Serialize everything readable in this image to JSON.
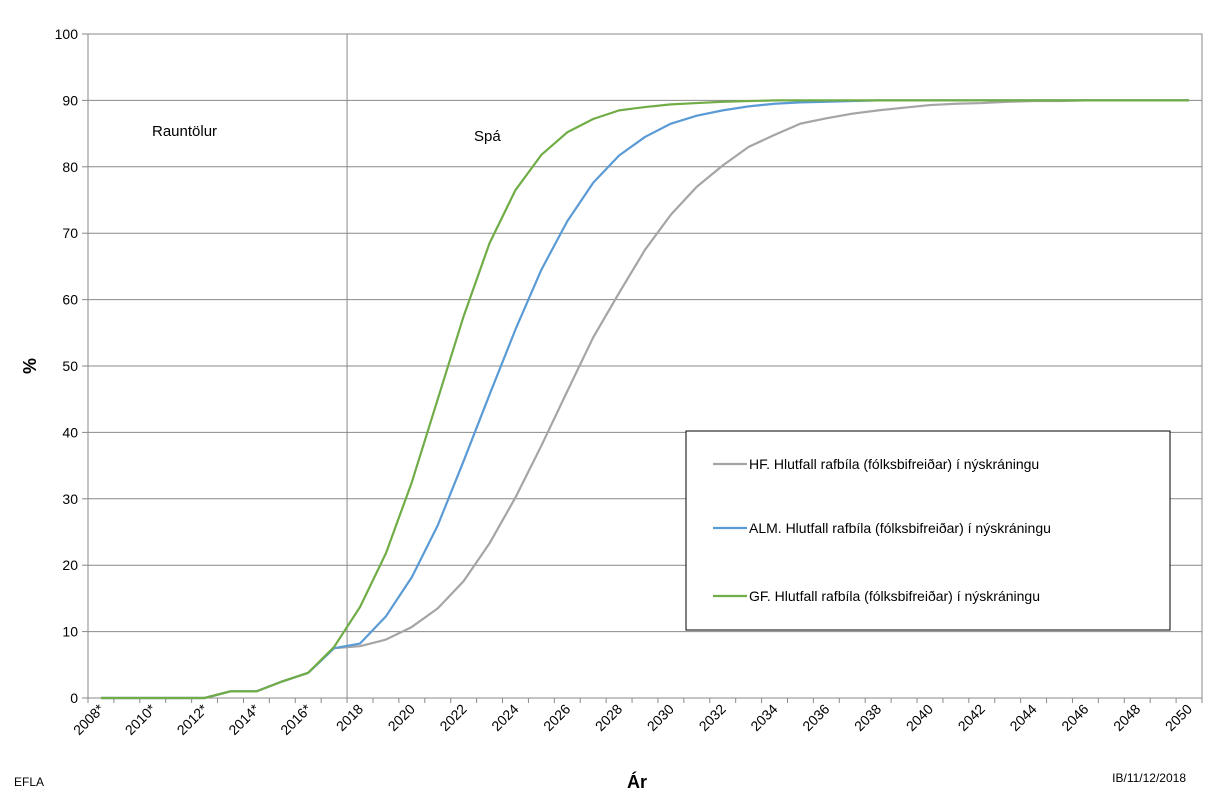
{
  "chart_data": {
    "type": "line",
    "title": "",
    "xlabel": "Ár",
    "ylabel": "%",
    "ylim": [
      0,
      100
    ],
    "yticks": [
      0,
      10,
      20,
      30,
      40,
      50,
      60,
      70,
      80,
      90,
      100
    ],
    "grid": "horizontal",
    "categories": [
      "2008*",
      "2009*",
      "2010*",
      "2011*",
      "2012*",
      "2013*",
      "2014*",
      "2015*",
      "2016*",
      "2017*",
      "2018",
      "2019",
      "2020",
      "2021",
      "2022",
      "2023",
      "2024",
      "2025",
      "2026",
      "2027",
      "2028",
      "2029",
      "2030",
      "2031",
      "2032",
      "2033",
      "2034",
      "2035",
      "2036",
      "2037",
      "2038",
      "2039",
      "2040",
      "2041",
      "2042",
      "2043",
      "2044",
      "2045",
      "2046",
      "2047",
      "2048",
      "2049",
      "2050"
    ],
    "tick_labels": [
      "2008*",
      "2010*",
      "2012*",
      "2014*",
      "2016*",
      "2018",
      "2020",
      "2022",
      "2024",
      "2026",
      "2028",
      "2030",
      "2032",
      "2034",
      "2036",
      "2038",
      "2040",
      "2042",
      "2044",
      "2046",
      "2048",
      "2050"
    ],
    "annotations": {
      "left": "Rauntölur",
      "right": "Spá"
    },
    "legend_position": "right",
    "series": [
      {
        "name": "HF. Hlutfall rafbíla (fólksbifreiðar) í nýskráningu",
        "color": "#a5a5a5",
        "values": [
          0,
          0,
          0,
          0,
          0,
          1,
          1,
          2.5,
          3.8,
          7.5,
          7.8,
          8.8,
          10.7,
          13.5,
          17.6,
          23.3,
          30.2,
          38,
          46.2,
          54.3,
          61,
          67.5,
          72.8,
          77,
          80.2,
          83,
          84.8,
          86.5,
          87.3,
          88,
          88.5,
          88.9,
          89.3,
          89.5,
          89.6,
          89.8,
          89.9,
          89.9,
          90,
          90,
          90,
          90,
          90
        ]
      },
      {
        "name": "ALM. Hlutfall rafbíla (fólksbifreiðar) í nýskráningu",
        "color": "#5b9bd5",
        "values": [
          0,
          0,
          0,
          0,
          0,
          1,
          1,
          2.5,
          3.8,
          7.5,
          8.2,
          12.3,
          18.2,
          26,
          35.7,
          45.7,
          55.5,
          64.5,
          71.8,
          77.6,
          81.7,
          84.5,
          86.5,
          87.7,
          88.5,
          89.1,
          89.5,
          89.7,
          89.8,
          89.9,
          90,
          90,
          90,
          90,
          90,
          90,
          90,
          90,
          90,
          90,
          90,
          90,
          90
        ]
      },
      {
        "name": "GF. Hlutfall rafbíla (fólksbifreiðar) í nýskráningu",
        "color": "#70ad47",
        "values": [
          0,
          0,
          0,
          0,
          0,
          1,
          1,
          2.5,
          3.8,
          7.7,
          13.7,
          21.8,
          32.5,
          45,
          57.5,
          68.5,
          76.5,
          81.8,
          85.2,
          87.2,
          88.5,
          89,
          89.4,
          89.6,
          89.8,
          89.9,
          90,
          90,
          90,
          90,
          90,
          90,
          90,
          90,
          90,
          90,
          90,
          90,
          90,
          90,
          90,
          90,
          90
        ]
      }
    ]
  },
  "footer": {
    "left": "EFLA",
    "right": "IB/11/12/2018"
  }
}
